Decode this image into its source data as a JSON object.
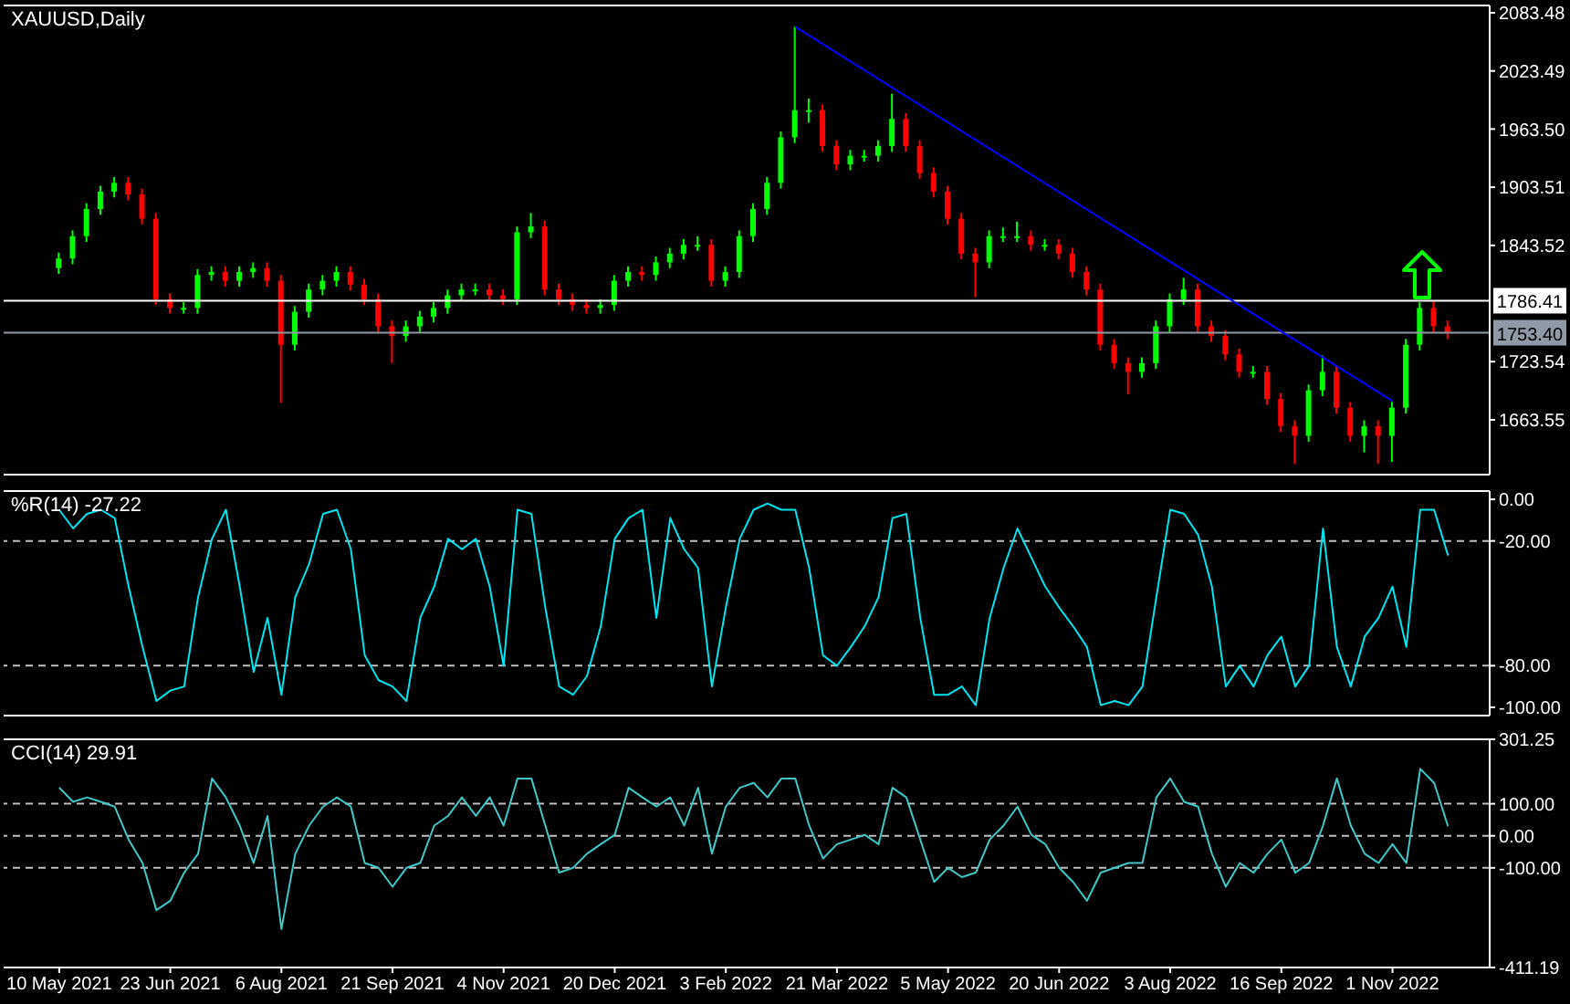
{
  "chart_data": [
    {
      "type": "candlestick",
      "title": "XAUUSD,Daily",
      "grid": false,
      "legend": false,
      "tick_labels": "y",
      "categories": [
        null,
        null,
        null,
        null,
        null,
        null,
        null,
        null,
        null,
        null,
        null,
        null,
        null,
        null,
        null,
        null,
        null,
        null,
        null,
        null,
        null,
        null,
        null,
        null,
        null,
        null,
        null,
        null,
        null,
        null,
        null,
        null,
        null,
        null,
        null,
        null,
        null,
        null,
        null,
        null,
        null,
        null,
        null,
        null,
        null,
        null,
        null,
        null,
        null,
        null,
        null,
        null,
        null,
        null,
        null,
        null,
        null,
        null,
        null,
        null,
        null,
        null,
        null,
        null,
        null,
        null,
        null,
        null,
        null,
        null,
        null,
        null,
        null,
        null,
        null,
        null,
        null,
        null,
        null,
        null,
        null,
        null,
        null,
        null,
        null,
        null,
        null,
        null,
        null,
        null,
        null,
        null,
        null,
        null,
        null,
        null,
        null,
        null,
        null,
        null,
        null
      ],
      "ohlc": [
        [
          1820,
          1836,
          1814,
          1830
        ],
        [
          1830,
          1859,
          1824,
          1853
        ],
        [
          1853,
          1887,
          1847,
          1881
        ],
        [
          1881,
          1905,
          1875,
          1899
        ],
        [
          1899,
          1914,
          1893,
          1908
        ],
        [
          1908,
          1914,
          1890,
          1896
        ],
        [
          1896,
          1902,
          1865,
          1871
        ],
        [
          1871,
          1877,
          1782,
          1788
        ],
        [
          1788,
          1794,
          1773,
          1779
        ],
        [
          1779,
          1785,
          1773,
          1779
        ],
        [
          1779,
          1819,
          1773,
          1813
        ],
        [
          1813,
          1822,
          1807,
          1816
        ],
        [
          1816,
          1822,
          1801,
          1807
        ],
        [
          1807,
          1822,
          1801,
          1816
        ],
        [
          1816,
          1826,
          1810,
          1820
        ],
        [
          1820,
          1826,
          1801,
          1807
        ],
        [
          1807,
          1813,
          1681,
          1741
        ],
        [
          1741,
          1781,
          1735,
          1775
        ],
        [
          1775,
          1804,
          1769,
          1798
        ],
        [
          1798,
          1813,
          1792,
          1807
        ],
        [
          1807,
          1822,
          1801,
          1816
        ],
        [
          1816,
          1822,
          1797,
          1803
        ],
        [
          1803,
          1809,
          1782,
          1788
        ],
        [
          1788,
          1794,
          1754,
          1760
        ],
        [
          1760,
          1766,
          1722,
          1750
        ],
        [
          1750,
          1766,
          1744,
          1760
        ],
        [
          1760,
          1776,
          1754,
          1770
        ],
        [
          1770,
          1785,
          1764,
          1779
        ],
        [
          1779,
          1798,
          1773,
          1792
        ],
        [
          1792,
          1804,
          1786,
          1798
        ],
        [
          1798,
          1804,
          1792,
          1798
        ],
        [
          1798,
          1804,
          1786,
          1792
        ],
        [
          1792,
          1798,
          1782,
          1788
        ],
        [
          1788,
          1863,
          1782,
          1857
        ],
        [
          1857,
          1877,
          1851,
          1863
        ],
        [
          1863,
          1869,
          1792,
          1798
        ],
        [
          1798,
          1804,
          1782,
          1788
        ],
        [
          1788,
          1794,
          1776,
          1782
        ],
        [
          1782,
          1788,
          1773,
          1779
        ],
        [
          1779,
          1788,
          1773,
          1782
        ],
        [
          1782,
          1813,
          1776,
          1807
        ],
        [
          1807,
          1822,
          1801,
          1816
        ],
        [
          1816,
          1822,
          1807,
          1813
        ],
        [
          1813,
          1832,
          1807,
          1826
        ],
        [
          1826,
          1841,
          1820,
          1835
        ],
        [
          1835,
          1850,
          1829,
          1844
        ],
        [
          1844,
          1853,
          1838,
          1844
        ],
        [
          1844,
          1850,
          1801,
          1807
        ],
        [
          1807,
          1822,
          1801,
          1816
        ],
        [
          1816,
          1859,
          1810,
          1853
        ],
        [
          1853,
          1887,
          1847,
          1881
        ],
        [
          1881,
          1914,
          1875,
          1908
        ],
        [
          1908,
          1961,
          1902,
          1955
        ],
        [
          1955,
          2069,
          1949,
          1983
        ],
        [
          1983,
          1995,
          1970,
          1983
        ],
        [
          1983,
          1989,
          1940,
          1946
        ],
        [
          1946,
          1952,
          1921,
          1927
        ],
        [
          1927,
          1942,
          1921,
          1936
        ],
        [
          1936,
          1942,
          1930,
          1936
        ],
        [
          1936,
          1952,
          1930,
          1946
        ],
        [
          1946,
          2000,
          1940,
          1974
        ],
        [
          1974,
          1980,
          1940,
          1946
        ],
        [
          1946,
          1952,
          1912,
          1918
        ],
        [
          1918,
          1924,
          1893,
          1899
        ],
        [
          1899,
          1905,
          1865,
          1871
        ],
        [
          1871,
          1877,
          1829,
          1835
        ],
        [
          1835,
          1841,
          1790,
          1826
        ],
        [
          1826,
          1859,
          1820,
          1853
        ],
        [
          1853,
          1862,
          1847,
          1853
        ],
        [
          1853,
          1868,
          1847,
          1853
        ],
        [
          1853,
          1859,
          1838,
          1844
        ],
        [
          1844,
          1850,
          1838,
          1844
        ],
        [
          1844,
          1850,
          1829,
          1835
        ],
        [
          1835,
          1841,
          1810,
          1816
        ],
        [
          1816,
          1822,
          1792,
          1798
        ],
        [
          1798,
          1804,
          1735,
          1741
        ],
        [
          1741,
          1747,
          1716,
          1722
        ],
        [
          1722,
          1728,
          1690,
          1713
        ],
        [
          1713,
          1728,
          1707,
          1722
        ],
        [
          1722,
          1766,
          1716,
          1760
        ],
        [
          1760,
          1794,
          1754,
          1788
        ],
        [
          1788,
          1810,
          1782,
          1798
        ],
        [
          1798,
          1804,
          1754,
          1760
        ],
        [
          1760,
          1766,
          1744,
          1750
        ],
        [
          1750,
          1756,
          1725,
          1731
        ],
        [
          1731,
          1737,
          1707,
          1713
        ],
        [
          1713,
          1719,
          1707,
          1713
        ],
        [
          1713,
          1719,
          1679,
          1685
        ],
        [
          1685,
          1691,
          1651,
          1657
        ],
        [
          1657,
          1663,
          1618,
          1647
        ],
        [
          1647,
          1700,
          1641,
          1694
        ],
        [
          1694,
          1730,
          1688,
          1713
        ],
        [
          1713,
          1719,
          1670,
          1676
        ],
        [
          1676,
          1682,
          1641,
          1647
        ],
        [
          1647,
          1663,
          1630,
          1657
        ],
        [
          1657,
          1663,
          1618,
          1647
        ],
        [
          1647,
          1682,
          1620,
          1676
        ],
        [
          1676,
          1747,
          1670,
          1741
        ],
        [
          1741,
          1785,
          1735,
          1779
        ],
        [
          1779,
          1786,
          1754,
          1760
        ],
        [
          1760,
          1766,
          1747,
          1753.4
        ]
      ],
      "colors": [
        "#00ff00",
        "#00ff00",
        "#00ff00",
        "#00ff00",
        "#00ff00",
        "#ff0000",
        "#ff0000",
        "#ff0000",
        "#ff0000",
        "#00ff00",
        "#00ff00",
        "#00ff00",
        "#ff0000",
        "#00ff00",
        "#00ff00",
        "#ff0000",
        "#ff0000",
        "#00ff00",
        "#00ff00",
        "#00ff00",
        "#00ff00",
        "#ff0000",
        "#ff0000",
        "#ff0000",
        "#ff0000",
        "#00ff00",
        "#00ff00",
        "#00ff00",
        "#00ff00",
        "#00ff00",
        "#00ff00",
        "#ff0000",
        "#ff0000",
        "#00ff00",
        "#00ff00",
        "#ff0000",
        "#ff0000",
        "#ff0000",
        "#ff0000",
        "#00ff00",
        "#00ff00",
        "#00ff00",
        "#ff0000",
        "#00ff00",
        "#00ff00",
        "#00ff00",
        "#00ff00",
        "#ff0000",
        "#00ff00",
        "#00ff00",
        "#00ff00",
        "#00ff00",
        "#00ff00",
        "#00ff00",
        "#00ff00",
        "#ff0000",
        "#ff0000",
        "#00ff00",
        "#00ff00",
        "#00ff00",
        "#00ff00",
        "#ff0000",
        "#ff0000",
        "#ff0000",
        "#ff0000",
        "#ff0000",
        "#ff0000",
        "#00ff00",
        "#00ff00",
        "#00ff00",
        "#ff0000",
        "#00ff00",
        "#ff0000",
        "#ff0000",
        "#ff0000",
        "#ff0000",
        "#ff0000",
        "#ff0000",
        "#00ff00",
        "#00ff00",
        "#00ff00",
        "#00ff00",
        "#ff0000",
        "#ff0000",
        "#ff0000",
        "#ff0000",
        "#00ff00",
        "#ff0000",
        "#ff0000",
        "#ff0000",
        "#00ff00",
        "#00ff00",
        "#ff0000",
        "#ff0000",
        "#00ff00",
        "#ff0000",
        "#00ff00",
        "#00ff00",
        "#00ff00",
        "#ff0000",
        "#ff0000"
      ],
      "series": [
        {
          "type": "line",
          "color": "#0000ff",
          "values": [
            null,
            null,
            null,
            null,
            null,
            null,
            null,
            null,
            null,
            null,
            null,
            null,
            null,
            null,
            null,
            null,
            null,
            null,
            null,
            null,
            null,
            null,
            null,
            null,
            null,
            null,
            null,
            null,
            null,
            null,
            null,
            null,
            null,
            null,
            null,
            null,
            null,
            null,
            null,
            null,
            null,
            null,
            null,
            null,
            null,
            null,
            null,
            null,
            null,
            null,
            null,
            null,
            null,
            2069,
            null,
            null,
            null,
            null,
            null,
            null,
            null,
            null,
            null,
            null,
            null,
            null,
            null,
            null,
            null,
            null,
            null,
            null,
            null,
            null,
            null,
            null,
            null,
            null,
            null,
            null,
            null,
            null,
            null,
            null,
            null,
            null,
            null,
            null,
            null,
            null,
            null,
            null,
            null,
            null,
            null,
            null,
            1683,
            null,
            null,
            null,
            null
          ]
        }
      ],
      "ylim": [
        1607,
        2091
      ],
      "yticks": [
        {
          "value": 2083.48,
          "label": "2083.48"
        },
        {
          "value": 2023.49,
          "label": "2023.49"
        },
        {
          "value": 1963.5,
          "label": "1963.50"
        },
        {
          "value": 1903.51,
          "label": "1903.51"
        },
        {
          "value": 1843.52,
          "label": "1843.52"
        },
        {
          "value": 1723.54,
          "label": "1723.54"
        },
        {
          "value": 1663.55,
          "label": "1663.55"
        }
      ],
      "ref_lines": [
        {
          "axis": "y",
          "value": 1786.41,
          "label": "1786.41",
          "color": "#ffffff"
        },
        {
          "axis": "y",
          "value": 1753.4,
          "label": "1753.40",
          "color": "#8f9aa6"
        }
      ]
    },
    {
      "type": "line",
      "title": "%R(14) -27.22",
      "grid": false,
      "legend": false,
      "tick_labels": "y",
      "categories": [
        null,
        null,
        null,
        null,
        null,
        null,
        null,
        null,
        null,
        null,
        null,
        null,
        null,
        null,
        null,
        null,
        null,
        null,
        null,
        null,
        null,
        null,
        null,
        null,
        null,
        null,
        null,
        null,
        null,
        null,
        null,
        null,
        null,
        null,
        null,
        null,
        null,
        null,
        null,
        null,
        null,
        null,
        null,
        null,
        null,
        null,
        null,
        null,
        null,
        null,
        null,
        null,
        null,
        null,
        null,
        null,
        null,
        null,
        null,
        null,
        null,
        null,
        null,
        null,
        null,
        null,
        null,
        null,
        null,
        null,
        null,
        null,
        null,
        null,
        null,
        null,
        null,
        null,
        null,
        null,
        null,
        null,
        null,
        null,
        null,
        null,
        null,
        null,
        null,
        null,
        null,
        null,
        null,
        null,
        null,
        null,
        null,
        null,
        null,
        null,
        null
      ],
      "series": [
        {
          "color": "#00e5ee",
          "values": [
            -5,
            -14,
            -7,
            -5,
            -9,
            -42,
            -71,
            -97,
            -92,
            -90,
            -47,
            -19,
            -5,
            -42,
            -83,
            -57,
            -94,
            -47,
            -31,
            -7,
            -5,
            -24,
            -75,
            -87,
            -90,
            -97,
            -57,
            -42,
            -19,
            -24,
            -19,
            -42,
            -80,
            -5,
            -7,
            -52,
            -90,
            -94,
            -85,
            -61,
            -19,
            -9,
            -5,
            -57,
            -9,
            -24,
            -33,
            -90,
            -52,
            -19,
            -5,
            -2,
            -5,
            -5,
            -33,
            -75,
            -80,
            -71,
            -61,
            -47,
            -9,
            -7,
            -57,
            -94,
            -94,
            -90,
            -99,
            -57,
            -33,
            -14,
            -28,
            -42,
            -52,
            -61,
            -71,
            -99,
            -97,
            -99,
            -90,
            -47,
            -5,
            -7,
            -17,
            -42,
            -90,
            -80,
            -90,
            -75,
            -66,
            -90,
            -80,
            -14,
            -71,
            -90,
            -66,
            -57,
            -42,
            -71,
            -5,
            -5,
            -27
          ]
        }
      ],
      "ylim": [
        -104,
        4
      ],
      "yticks": [
        {
          "value": 0,
          "label": "0.00"
        },
        {
          "value": -20,
          "label": "-20.00"
        },
        {
          "value": -80,
          "label": "-80.00"
        },
        {
          "value": -100,
          "label": "-100.00"
        }
      ],
      "ref_lines": [
        {
          "axis": "y",
          "value": -20,
          "color": "#c0c0c0",
          "line_style": "dashed"
        },
        {
          "axis": "y",
          "value": -80,
          "color": "#c0c0c0",
          "line_style": "dashed"
        }
      ]
    },
    {
      "type": "line",
      "title": "CCI(14) 29.91",
      "grid": false,
      "legend": false,
      "categories": [
        "10 May 2021",
        null,
        null,
        null,
        null,
        null,
        null,
        null,
        "23 Jun 2021",
        null,
        null,
        null,
        null,
        null,
        null,
        null,
        "6 Aug 2021",
        null,
        null,
        null,
        null,
        null,
        null,
        null,
        "21 Sep 2021",
        null,
        null,
        null,
        null,
        null,
        null,
        null,
        "4 Nov 2021",
        null,
        null,
        null,
        null,
        null,
        null,
        null,
        "20 Dec 2021",
        null,
        null,
        null,
        null,
        null,
        null,
        null,
        "3 Feb 2022",
        null,
        null,
        null,
        null,
        null,
        null,
        null,
        "21 Mar 2022",
        null,
        null,
        null,
        null,
        null,
        null,
        null,
        "5 May 2022",
        null,
        null,
        null,
        null,
        null,
        null,
        null,
        "20 Jun 2022",
        null,
        null,
        null,
        null,
        null,
        null,
        null,
        "3 Aug 2022",
        null,
        null,
        null,
        null,
        null,
        null,
        null,
        "16 Sep 2022",
        null,
        null,
        null,
        null,
        null,
        null,
        null,
        "1 Nov 2022",
        null,
        null,
        null,
        null
      ],
      "series": [
        {
          "color": "#40c8c8",
          "values": [
            150,
            106,
            120,
            106,
            91,
            -12,
            -85,
            -232,
            -203,
            -115,
            -56,
            179,
            120,
            32,
            -85,
            62,
            -291,
            -56,
            32,
            91,
            120,
            91,
            -85,
            -100,
            -159,
            -100,
            -85,
            32,
            62,
            120,
            62,
            120,
            32,
            179,
            179,
            32,
            -115,
            -100,
            -56,
            -26,
            3,
            150,
            120,
            91,
            120,
            32,
            150,
            -56,
            91,
            150,
            165,
            120,
            179,
            179,
            32,
            -71,
            -26,
            -12,
            3,
            -26,
            150,
            120,
            -12,
            -144,
            -100,
            -129,
            -115,
            -12,
            32,
            91,
            3,
            -26,
            -100,
            -144,
            -203,
            -115,
            -100,
            -85,
            -85,
            120,
            179,
            106,
            91,
            -56,
            -159,
            -85,
            -115,
            -56,
            -12,
            -115,
            -85,
            32,
            179,
            32,
            -56,
            -85,
            -26,
            -85,
            209,
            165,
            30
          ]
        }
      ],
      "ylim": [
        -411.19,
        301.25
      ],
      "yticks": [
        {
          "value": 301.25,
          "label": "301.25"
        },
        {
          "value": 100,
          "label": "100.00"
        },
        {
          "value": 0,
          "label": "0.00"
        },
        {
          "value": -100,
          "label": "-100.00"
        },
        {
          "value": -411.19,
          "label": "-411.19"
        }
      ],
      "ref_lines": [
        {
          "axis": "y",
          "value": 100,
          "color": "#c0c0c0",
          "line_style": "dashed"
        },
        {
          "axis": "y",
          "value": 0,
          "color": "#c0c0c0",
          "line_style": "dashed"
        },
        {
          "axis": "y",
          "value": -100,
          "color": "#c0c0c0",
          "line_style": "dashed"
        }
      ]
    }
  ]
}
